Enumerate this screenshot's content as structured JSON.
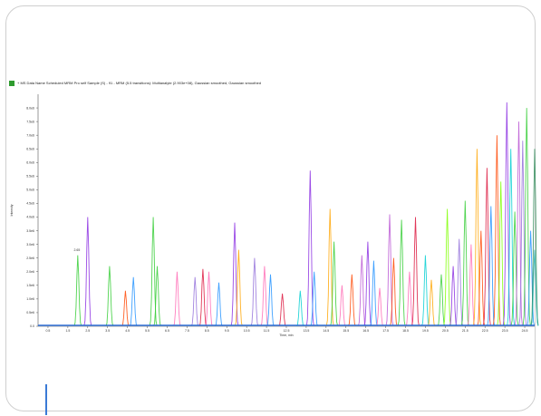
{
  "caption": "+ MS Data Name Scheduled MRM Pro self Sample (S) - 91 - MRM (5.5 transitions): Multianalyte (2.903e+08), Gaussian smoothed, Gaussian smoothed",
  "annotation": "2.65",
  "colors": {
    "accent_bar": "#3a7ad6",
    "series": [
      "#8a2be2",
      "#32cd32",
      "#ff4500",
      "#1e90ff",
      "#ff69b4",
      "#00ced1",
      "#9370db",
      "#ffa500",
      "#2e8b57",
      "#dc143c",
      "#4169e1",
      "#7fff00",
      "#ba55d3",
      "#20b2aa"
    ]
  },
  "chart_data": {
    "type": "line",
    "title": "",
    "xlabel": "Time, min",
    "ylabel": "Intensity",
    "xlim": [
      0,
      25
    ],
    "ylim": [
      0,
      8.5
    ],
    "x_ticks": [
      "0.5",
      "1.5",
      "2.5",
      "3.5",
      "4.5",
      "5.5",
      "6.5",
      "7.5",
      "8.5",
      "9.5",
      "10.5",
      "11.5",
      "12.5",
      "13.5",
      "14.5",
      "15.5",
      "16.5",
      "17.5",
      "18.5",
      "19.5",
      "20.5",
      "21.5",
      "22.5",
      "23.5",
      "24.5"
    ],
    "y_ticks": [
      "0.0",
      "0.5e6",
      "1.0e6",
      "1.5e6",
      "2.0e6",
      "2.5e6",
      "3.0e6",
      "3.5e6",
      "4.0e6",
      "4.5e6",
      "5.0e6",
      "5.5e6",
      "6.0e6",
      "6.5e6",
      "7.0e6",
      "7.5e6",
      "8.0e6"
    ],
    "grid": false,
    "peaks": [
      {
        "x": 2.0,
        "y": 2.6,
        "s": 1
      },
      {
        "x": 2.5,
        "y": 4.0,
        "s": 0
      },
      {
        "x": 3.6,
        "y": 2.2,
        "s": 1
      },
      {
        "x": 4.4,
        "y": 1.3,
        "s": 2
      },
      {
        "x": 4.8,
        "y": 1.8,
        "s": 3
      },
      {
        "x": 5.8,
        "y": 4.0,
        "s": 1
      },
      {
        "x": 6.0,
        "y": 2.2,
        "s": 1
      },
      {
        "x": 7.0,
        "y": 2.0,
        "s": 4
      },
      {
        "x": 7.9,
        "y": 1.8,
        "s": 6
      },
      {
        "x": 8.3,
        "y": 2.1,
        "s": 9
      },
      {
        "x": 8.6,
        "y": 2.0,
        "s": 4
      },
      {
        "x": 9.1,
        "y": 1.6,
        "s": 3
      },
      {
        "x": 9.9,
        "y": 3.8,
        "s": 0
      },
      {
        "x": 10.1,
        "y": 2.8,
        "s": 7
      },
      {
        "x": 10.9,
        "y": 2.5,
        "s": 6
      },
      {
        "x": 11.4,
        "y": 2.2,
        "s": 4
      },
      {
        "x": 11.7,
        "y": 1.9,
        "s": 3
      },
      {
        "x": 12.3,
        "y": 1.2,
        "s": 9
      },
      {
        "x": 13.2,
        "y": 1.3,
        "s": 5
      },
      {
        "x": 13.7,
        "y": 5.7,
        "s": 0
      },
      {
        "x": 13.9,
        "y": 2.0,
        "s": 3
      },
      {
        "x": 14.7,
        "y": 4.3,
        "s": 7
      },
      {
        "x": 14.9,
        "y": 3.1,
        "s": 1
      },
      {
        "x": 15.3,
        "y": 1.5,
        "s": 4
      },
      {
        "x": 15.8,
        "y": 1.9,
        "s": 2
      },
      {
        "x": 16.3,
        "y": 2.6,
        "s": 12
      },
      {
        "x": 16.6,
        "y": 3.1,
        "s": 0
      },
      {
        "x": 16.9,
        "y": 2.4,
        "s": 3
      },
      {
        "x": 17.2,
        "y": 1.4,
        "s": 4
      },
      {
        "x": 17.7,
        "y": 4.1,
        "s": 12
      },
      {
        "x": 17.9,
        "y": 2.5,
        "s": 2
      },
      {
        "x": 18.3,
        "y": 3.9,
        "s": 1
      },
      {
        "x": 18.7,
        "y": 2.0,
        "s": 4
      },
      {
        "x": 19.0,
        "y": 4.0,
        "s": 9
      },
      {
        "x": 19.5,
        "y": 2.6,
        "s": 5
      },
      {
        "x": 19.8,
        "y": 1.7,
        "s": 7
      },
      {
        "x": 20.3,
        "y": 1.9,
        "s": 1
      },
      {
        "x": 20.6,
        "y": 4.3,
        "s": 11
      },
      {
        "x": 20.9,
        "y": 2.2,
        "s": 0
      },
      {
        "x": 21.2,
        "y": 3.2,
        "s": 6
      },
      {
        "x": 21.5,
        "y": 4.6,
        "s": 1
      },
      {
        "x": 21.8,
        "y": 3.0,
        "s": 4
      },
      {
        "x": 22.1,
        "y": 6.5,
        "s": 7
      },
      {
        "x": 22.3,
        "y": 3.5,
        "s": 2
      },
      {
        "x": 22.6,
        "y": 5.8,
        "s": 9
      },
      {
        "x": 22.8,
        "y": 4.4,
        "s": 3
      },
      {
        "x": 23.1,
        "y": 7.0,
        "s": 2
      },
      {
        "x": 23.3,
        "y": 5.3,
        "s": 11
      },
      {
        "x": 23.6,
        "y": 8.2,
        "s": 0
      },
      {
        "x": 23.8,
        "y": 6.5,
        "s": 5
      },
      {
        "x": 24.0,
        "y": 4.2,
        "s": 1
      },
      {
        "x": 24.2,
        "y": 7.5,
        "s": 12
      },
      {
        "x": 24.4,
        "y": 6.8,
        "s": 6
      },
      {
        "x": 24.6,
        "y": 8.0,
        "s": 1
      },
      {
        "x": 24.8,
        "y": 3.5,
        "s": 3
      },
      {
        "x": 25.0,
        "y": 6.5,
        "s": 8
      },
      {
        "x": 25.0,
        "y": 2.8,
        "s": 13
      }
    ]
  }
}
